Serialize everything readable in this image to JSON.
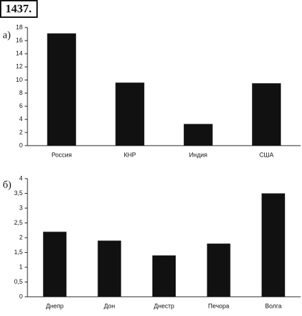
{
  "header": "1437.",
  "chart_data": [
    {
      "type": "bar",
      "label": "а)",
      "categories": [
        "Россия",
        "КНР",
        "Индия",
        "США"
      ],
      "values": [
        17.1,
        9.6,
        3.3,
        9.5
      ],
      "color": "#111111",
      "ylim": [
        0,
        18
      ],
      "yticks": [
        0,
        2,
        4,
        6,
        8,
        10,
        12,
        14,
        16,
        18
      ],
      "grid": false
    },
    {
      "type": "bar",
      "label": "б)",
      "categories": [
        "Днепр",
        "Дон",
        "Днестр",
        "Печора",
        "Волга"
      ],
      "values": [
        2.2,
        1.9,
        1.4,
        1.8,
        3.5
      ],
      "color": "#111111",
      "ylim": [
        0,
        4
      ],
      "yticks": [
        0,
        {
          "value": 0.5,
          "label": "0,5"
        },
        1,
        {
          "value": 1.5,
          "label": "1,5"
        },
        2,
        {
          "value": 2.5,
          "label": "2,5"
        },
        3,
        {
          "value": 3.5,
          "label": "3,5"
        },
        4
      ],
      "grid": false
    }
  ]
}
